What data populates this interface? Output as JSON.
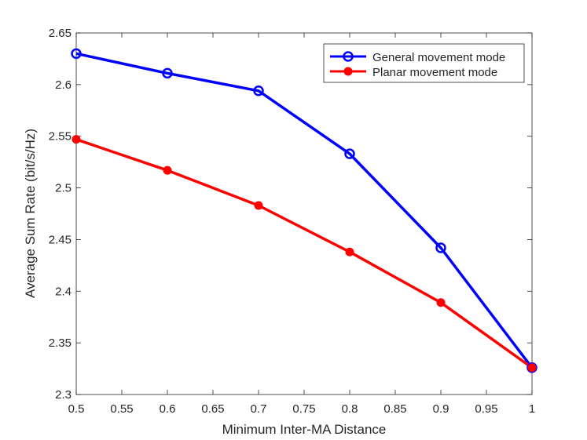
{
  "chart_data": {
    "type": "line",
    "title": "",
    "xlabel": "Minimum Inter-MA Distance",
    "ylabel": "Average Sum Rate (bit/s/Hz)",
    "xlim": [
      0.5,
      1
    ],
    "ylim": [
      2.3,
      2.65
    ],
    "xticks": [
      "0.5",
      "0.55",
      "0.6",
      "0.65",
      "0.7",
      "0.75",
      "0.8",
      "0.85",
      "0.9",
      "0.95",
      "1"
    ],
    "yticks": [
      "2.3",
      "2.35",
      "2.4",
      "2.45",
      "2.5",
      "2.55",
      "2.6",
      "2.65"
    ],
    "grid": false,
    "legend_position": "top-right",
    "x": [
      0.5,
      0.6,
      0.7,
      0.8,
      0.9,
      1.0
    ],
    "series": [
      {
        "name": "General movement mode",
        "color": "#0000ff",
        "marker": "open-circle",
        "values": [
          2.63,
          2.611,
          2.594,
          2.533,
          2.442,
          2.326
        ]
      },
      {
        "name": "Planar movement mode",
        "color": "#ff0000",
        "marker": "filled-circle",
        "values": [
          2.547,
          2.517,
          2.483,
          2.438,
          2.389,
          2.326
        ]
      }
    ]
  }
}
